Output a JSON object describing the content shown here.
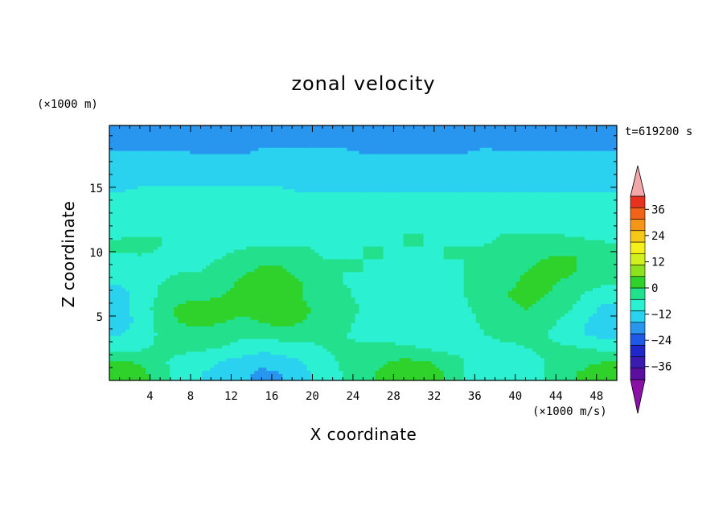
{
  "chart_data": {
    "type": "heatmap",
    "title": "zonal velocity",
    "xlabel": "X coordinate",
    "ylabel": "Z coordinate",
    "x_unit": "(×1000 m/s)",
    "y_unit": "(×1000 m)",
    "time_label": "t=619200 s",
    "xlim": [
      0,
      50
    ],
    "ylim": [
      0,
      19.8
    ],
    "x_ticks": [
      4,
      8,
      12,
      16,
      20,
      24,
      28,
      32,
      36,
      40,
      44,
      48
    ],
    "y_ticks": [
      5,
      10,
      15
    ],
    "colorbar": {
      "min": -42,
      "max": 42,
      "step": 6,
      "tick_values": [
        -36,
        -24,
        -12,
        0,
        12,
        24,
        36
      ],
      "tick_labels": [
        "−36",
        "−24",
        "−12",
        "0",
        "12",
        "24",
        "36"
      ],
      "colors": [
        "#5a0fa0",
        "#3a1bb0",
        "#1e28c8",
        "#1f5ae6",
        "#2896ee",
        "#2ad2f0",
        "#2cf0d2",
        "#22e08c",
        "#2ed22a",
        "#8ce21c",
        "#d2f01e",
        "#f5f01a",
        "#f5c81a",
        "#f5961a",
        "#f0641a",
        "#e6321e"
      ],
      "over_color": "#f2a8a8",
      "under_color": "#8a10a8"
    },
    "field": {
      "description_free": true,
      "x": [
        1,
        3,
        5,
        7,
        9,
        11,
        13,
        15,
        17,
        19,
        21,
        23,
        25,
        27,
        29,
        31,
        33,
        35,
        37,
        39,
        41,
        43,
        45,
        47,
        49
      ],
      "z": [
        0.5,
        1.5,
        2.5,
        3.5,
        4.5,
        5.5,
        6.5,
        7.5,
        8.5,
        9.5,
        10.5,
        11.5,
        12.5,
        13.5,
        14.5,
        15.5,
        16.5,
        17.5,
        18.5,
        19.5
      ],
      "values": [
        [
          11,
          9,
          2,
          -2,
          -6,
          -8,
          -10,
          -14,
          -12,
          -8,
          -4,
          0,
          3,
          8,
          12,
          11,
          6,
          0,
          -4,
          -6,
          -4,
          0,
          4,
          8,
          11
        ],
        [
          6,
          5,
          1,
          -2,
          -4,
          -6,
          -8,
          -10,
          -8,
          -6,
          -2,
          1,
          3,
          5,
          7,
          6,
          4,
          0,
          -2,
          -4,
          -2,
          0,
          2,
          4,
          6
        ],
        [
          -2,
          -1,
          1,
          2,
          1,
          0,
          -2,
          -4,
          -4,
          -2,
          0,
          1,
          1,
          2,
          1,
          0,
          -2,
          -2,
          -2,
          -1,
          0,
          1,
          1,
          0,
          -2
        ],
        [
          -6,
          -4,
          1,
          3,
          3,
          2,
          1,
          2,
          3,
          2,
          1,
          0,
          -1,
          -2,
          -3,
          -4,
          -3,
          -2,
          0,
          1,
          1,
          0,
          -3,
          -6,
          -8
        ],
        [
          -8,
          -5,
          2,
          6,
          8,
          6,
          5,
          6,
          8,
          6,
          4,
          2,
          -2,
          -4,
          -6,
          -6,
          -4,
          -2,
          1,
          3,
          4,
          2,
          -2,
          -6,
          -10
        ],
        [
          -8,
          -4,
          3,
          8,
          9,
          8,
          7,
          8,
          8,
          7,
          5,
          3,
          -1,
          -4,
          -6,
          -6,
          -4,
          -1,
          2,
          4,
          6,
          5,
          1,
          -4,
          -8
        ],
        [
          -8,
          -4,
          1,
          4,
          5,
          6,
          8,
          9,
          9,
          6,
          3,
          1,
          -1,
          -3,
          -5,
          -5,
          -3,
          0,
          3,
          6,
          7,
          6,
          3,
          -1,
          -4
        ],
        [
          -6,
          -4,
          0,
          1,
          2,
          4,
          7,
          9,
          9,
          6,
          2,
          0,
          -1,
          -2,
          -3,
          -3,
          -2,
          0,
          2,
          5,
          7,
          7,
          5,
          2,
          0
        ],
        [
          -4,
          -3,
          -1,
          0,
          0,
          2,
          5,
          7,
          7,
          4,
          1,
          0,
          0,
          -1,
          -2,
          -2,
          -1,
          0,
          1,
          3,
          6,
          8,
          7,
          5,
          3
        ],
        [
          -2,
          -1,
          -1,
          -1,
          -1,
          0,
          2,
          4,
          4,
          2,
          0,
          0,
          0,
          0,
          -1,
          -1,
          0,
          0,
          1,
          2,
          4,
          6,
          7,
          5,
          3
        ],
        [
          2,
          3,
          0,
          -2,
          -3,
          -2,
          -1,
          0,
          0,
          0,
          -1,
          -1,
          0,
          0,
          0,
          0,
          0,
          0,
          0,
          1,
          2,
          3,
          3,
          2,
          1
        ],
        [
          -2,
          -1,
          0,
          -1,
          -2,
          -2,
          -2,
          -1,
          -1,
          -1,
          -2,
          -2,
          -1,
          -1,
          0,
          0,
          -1,
          -1,
          -1,
          0,
          0,
          0,
          -1,
          -2,
          -3
        ],
        [
          -4,
          -2,
          0,
          -1,
          -2,
          -3,
          -3,
          -3,
          -3,
          -3,
          -3,
          -3,
          -3,
          -3,
          -2,
          -2,
          -2,
          -2,
          -2,
          -2,
          -2,
          -3,
          -3,
          -4,
          -5
        ],
        [
          -5,
          -4,
          -3,
          -3,
          -3,
          -4,
          -4,
          -4,
          -4,
          -4,
          -4,
          -4,
          -4,
          -4,
          -4,
          -4,
          -4,
          -4,
          -4,
          -4,
          -4,
          -4,
          -5,
          -5,
          -6
        ],
        [
          -6,
          -5,
          -5,
          -5,
          -5,
          -5,
          -5,
          -5,
          -5,
          -6,
          -6,
          -6,
          -6,
          -6,
          -6,
          -6,
          -6,
          -6,
          -6,
          -6,
          -6,
          -6,
          -6,
          -6,
          -6
        ],
        [
          -7,
          -7,
          -7,
          -7,
          -7,
          -7,
          -7,
          -7,
          -7,
          -7,
          -7,
          -8,
          -8,
          -8,
          -8,
          -8,
          -8,
          -8,
          -8,
          -8,
          -8,
          -8,
          -8,
          -7,
          -7
        ],
        [
          -9,
          -9,
          -9,
          -9,
          -9,
          -9,
          -9,
          -9,
          -9,
          -9,
          -9,
          -9,
          -10,
          -10,
          -10,
          -10,
          -10,
          -10,
          -10,
          -10,
          -10,
          -10,
          -10,
          -9,
          -9
        ],
        [
          -11,
          -11,
          -11,
          -11,
          -12,
          -12,
          -12,
          -11,
          -11,
          -11,
          -11,
          -11,
          -12,
          -12,
          -12,
          -12,
          -12,
          -12,
          -11,
          -11,
          -11,
          -11,
          -11,
          -11,
          -11
        ],
        [
          -16,
          -15,
          -14,
          -14,
          -14,
          -14,
          -14,
          -13,
          -13,
          -13,
          -13,
          -13,
          -13,
          -13,
          -13,
          -13,
          -13,
          -13,
          -13,
          -14,
          -14,
          -14,
          -14,
          -14,
          -15
        ],
        [
          -18,
          -17,
          -16,
          -16,
          -16,
          -16,
          -16,
          -16,
          -15,
          -15,
          -15,
          -15,
          -15,
          -15,
          -15,
          -15,
          -15,
          -15,
          -15,
          -15,
          -16,
          -16,
          -16,
          -16,
          -17
        ]
      ]
    }
  }
}
